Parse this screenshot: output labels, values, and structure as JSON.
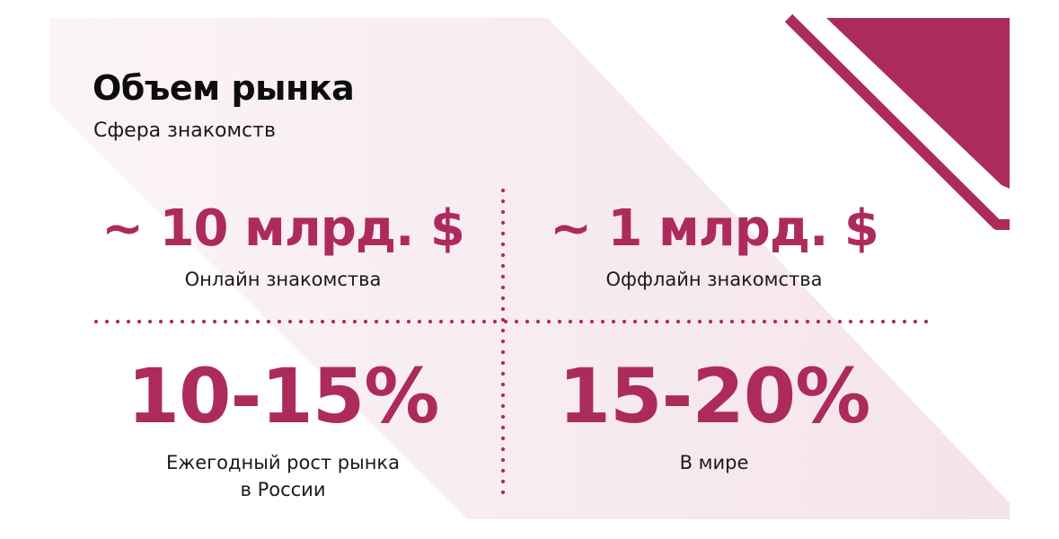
{
  "slide": {
    "title": "Объем рынка",
    "subtitle": "Сфера знакомств"
  },
  "stats": [
    {
      "value": "~ 10 млрд. $",
      "caption": [
        "Онлайн знакомства"
      ]
    },
    {
      "value": "~ 1 млрд. $",
      "caption": [
        "Оффлайн знакомства"
      ]
    },
    {
      "value": "10-15%",
      "caption": [
        "Ежегодный рост рынка",
        "в России"
      ]
    },
    {
      "value": "15-20%",
      "caption": [
        "В мире"
      ]
    }
  ],
  "colors": {
    "accent": "#ad2b5c",
    "band": "#f7edf1",
    "text": "#1a1a1a"
  }
}
